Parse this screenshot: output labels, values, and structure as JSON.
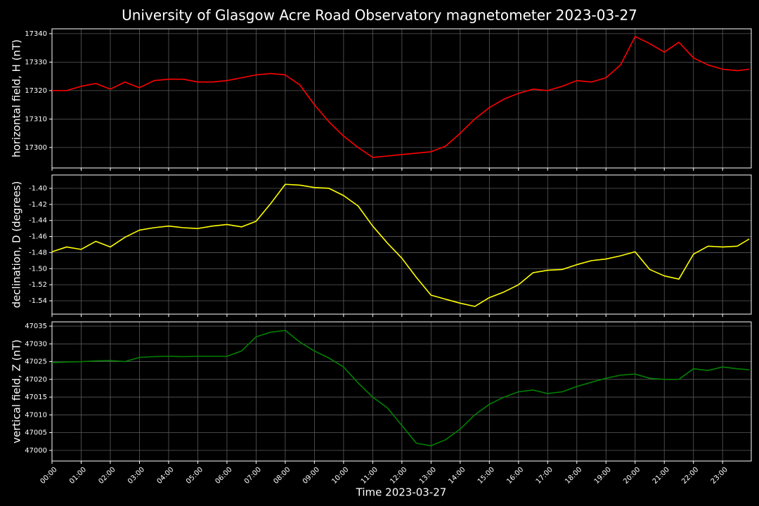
{
  "chart_data": [
    {
      "type": "line",
      "title": "University of Glasgow Acre Road Observatory magnetometer 2023-03-27",
      "ylabel": "horizontal field, H (nT)",
      "color": "#ff0000",
      "grid": true,
      "xlim": [
        "00:00",
        "23:59"
      ],
      "ylim": [
        17292.8,
        17341.7
      ],
      "yticks": [
        17300,
        17310,
        17320,
        17330,
        17340
      ],
      "x": [
        "00:00",
        "00:30",
        "01:00",
        "01:30",
        "02:00",
        "02:30",
        "03:00",
        "03:30",
        "04:00",
        "04:30",
        "05:00",
        "05:30",
        "06:00",
        "06:30",
        "07:00",
        "07:30",
        "08:00",
        "08:30",
        "09:00",
        "09:30",
        "10:00",
        "10:30",
        "11:00",
        "11:30",
        "12:00",
        "12:30",
        "13:00",
        "13:30",
        "14:00",
        "14:30",
        "15:00",
        "15:30",
        "16:00",
        "16:30",
        "17:00",
        "17:30",
        "18:00",
        "18:30",
        "19:00",
        "19:30",
        "20:00",
        "20:30",
        "21:00",
        "21:30",
        "22:00",
        "22:30",
        "23:00",
        "23:30",
        "23:55"
      ],
      "values": [
        17320,
        17320,
        17321.5,
        17322.5,
        17320.5,
        17323,
        17321,
        17323.5,
        17324,
        17324,
        17323,
        17323,
        17323.5,
        17324.5,
        17325.5,
        17326,
        17325.5,
        17322,
        17315,
        17309,
        17304,
        17300,
        17296.5,
        17297,
        17297.5,
        17298,
        17298.5,
        17300.5,
        17305,
        17310,
        17314,
        17317,
        17319,
        17320.5,
        17320,
        17321.5,
        17323.5,
        17323,
        17324.5,
        17329,
        17339,
        17336.5,
        17333.5,
        17337,
        17331.5,
        17329,
        17327.5,
        17327,
        17327.5
      ]
    },
    {
      "type": "line",
      "ylabel": "declination, D (degrees)",
      "color": "#ffff00",
      "grid": true,
      "xlim": [
        "00:00",
        "23:59"
      ],
      "ylim": [
        -1.5566,
        -1.3834
      ],
      "yticks": [
        {
          "value": -1.54,
          "label": "-1.54"
        },
        {
          "value": -1.52,
          "label": "-1.52"
        },
        {
          "value": -1.5,
          "label": "-1.50"
        },
        {
          "value": -1.48,
          "label": "-1.48"
        },
        {
          "value": -1.46,
          "label": "-1.46"
        },
        {
          "value": -1.44,
          "label": "-1.44"
        },
        {
          "value": -1.42,
          "label": "-1.42"
        },
        {
          "value": -1.4,
          "label": "-1.40"
        }
      ],
      "x": [
        "00:00",
        "00:30",
        "01:00",
        "01:30",
        "02:00",
        "02:30",
        "03:00",
        "03:30",
        "04:00",
        "04:30",
        "05:00",
        "05:30",
        "06:00",
        "06:30",
        "07:00",
        "07:30",
        "08:00",
        "08:30",
        "09:00",
        "09:30",
        "10:00",
        "10:30",
        "11:00",
        "11:30",
        "12:00",
        "12:30",
        "13:00",
        "13:30",
        "14:00",
        "14:30",
        "15:00",
        "15:30",
        "16:00",
        "16:30",
        "17:00",
        "17:30",
        "18:00",
        "18:30",
        "19:00",
        "19:30",
        "20:00",
        "20:30",
        "21:00",
        "21:30",
        "22:00",
        "22:30",
        "23:00",
        "23:30",
        "23:55"
      ],
      "values": [
        -1.479,
        -1.473,
        -1.476,
        -1.466,
        -1.473,
        -1.461,
        -1.452,
        -1.449,
        -1.447,
        -1.449,
        -1.45,
        -1.447,
        -1.445,
        -1.448,
        -1.441,
        -1.419,
        -1.395,
        -1.396,
        -1.399,
        -1.4,
        -1.409,
        -1.422,
        -1.447,
        -1.468,
        -1.487,
        -1.511,
        -1.533,
        -1.538,
        -1.543,
        -1.547,
        -1.536,
        -1.529,
        -1.52,
        -1.505,
        -1.502,
        -1.501,
        -1.495,
        -1.49,
        -1.488,
        -1.484,
        -1.479,
        -1.501,
        -1.509,
        -1.513,
        -1.482,
        -1.472,
        -1.473,
        -1.472,
        -1.463
      ]
    },
    {
      "type": "line",
      "ylabel": "vertical field, Z (nT)",
      "xlabel": "Time 2023-03-27",
      "color": "#008000",
      "grid": true,
      "xlim": [
        "00:00",
        "23:59"
      ],
      "ylim": [
        46997.0,
        47036.2
      ],
      "yticks": [
        47000,
        47005,
        47010,
        47015,
        47020,
        47025,
        47030,
        47035
      ],
      "xticks": [
        "00:00",
        "01:00",
        "02:00",
        "03:00",
        "04:00",
        "05:00",
        "06:00",
        "07:00",
        "08:00",
        "09:00",
        "10:00",
        "11:00",
        "12:00",
        "13:00",
        "14:00",
        "15:00",
        "16:00",
        "17:00",
        "18:00",
        "19:00",
        "20:00",
        "21:00",
        "22:00",
        "23:00"
      ],
      "x": [
        "00:00",
        "00:30",
        "01:00",
        "01:30",
        "02:00",
        "02:30",
        "03:00",
        "03:30",
        "04:00",
        "04:30",
        "05:00",
        "05:30",
        "06:00",
        "06:30",
        "07:00",
        "07:30",
        "08:00",
        "08:30",
        "09:00",
        "09:30",
        "10:00",
        "10:30",
        "11:00",
        "11:30",
        "12:00",
        "12:30",
        "13:00",
        "13:30",
        "14:00",
        "14:30",
        "15:00",
        "15:30",
        "16:00",
        "16:30",
        "17:00",
        "17:30",
        "18:00",
        "18:30",
        "19:00",
        "19:30",
        "20:00",
        "20:30",
        "21:00",
        "21:30",
        "22:00",
        "22:30",
        "23:00",
        "23:30",
        "23:55"
      ],
      "values": [
        47024.7,
        47024.9,
        47025,
        47025.2,
        47025.3,
        47025,
        47026.2,
        47026.4,
        47026.5,
        47026.4,
        47026.5,
        47026.5,
        47026.5,
        47028,
        47032,
        47033.3,
        47033.8,
        47030.5,
        47028,
        47026,
        47023.5,
        47019,
        47015,
        47012,
        47007,
        47002,
        47001.3,
        47003,
        47006,
        47010,
        47013,
        47015,
        47016.5,
        47017,
        47016,
        47016.5,
        47018,
        47019.2,
        47020.3,
        47021.2,
        47021.5,
        47020.3,
        47020,
        47020,
        47023,
        47022.5,
        47023.5,
        47023,
        47022.7
      ]
    }
  ]
}
